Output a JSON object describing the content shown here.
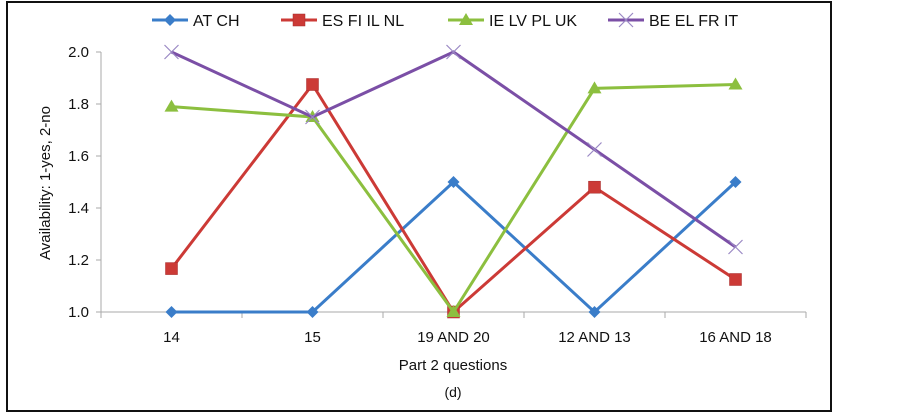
{
  "chart_data": {
    "type": "line",
    "title": "",
    "xlabel": "Part 2 questions",
    "ylabel": "Availability: 1-yes, 2-no",
    "caption": "(d)",
    "categories": [
      "14",
      "15",
      "19 AND 20",
      "12 AND 13",
      "16 AND 18"
    ],
    "ylim": [
      1.0,
      2.0
    ],
    "yticks": [
      "1.0",
      "1.2",
      "1.4",
      "1.6",
      "1.8",
      "2.0"
    ],
    "grid": false,
    "legend_position": "top",
    "series": [
      {
        "name": "AT CH",
        "color": "#3a7dc9",
        "marker": "diamond",
        "values": [
          1.0,
          1.0,
          1.5,
          1.0,
          1.5
        ]
      },
      {
        "name": "ES FI IL NL",
        "color": "#cc3a36",
        "marker": "square",
        "values": [
          1.167,
          1.875,
          1.0,
          1.48,
          1.125
        ]
      },
      {
        "name": "IE LV PL UK",
        "color": "#8cbf3f",
        "marker": "triangle",
        "values": [
          1.79,
          1.75,
          1.0,
          1.86,
          1.875
        ]
      },
      {
        "name": "BE EL FR IT",
        "color": "#7b4fa6",
        "marker": "x",
        "values": [
          2.0,
          1.75,
          2.0,
          1.625,
          1.25
        ]
      }
    ]
  }
}
